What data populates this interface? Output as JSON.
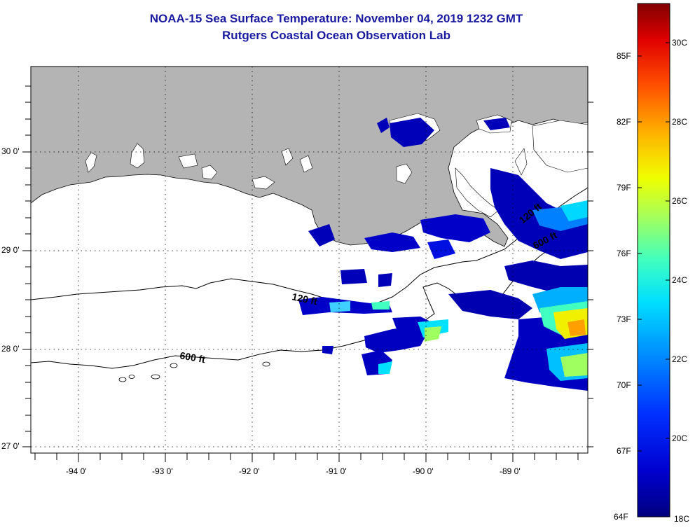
{
  "header": {
    "title": "NOAA-15 Sea Surface Temperature:  November 04, 2019 1232 GMT",
    "subtitle": "Rutgers Coastal Ocean Observation Lab"
  },
  "map": {
    "lat_ticks": [
      {
        "lat": 30,
        "label": "30 0'"
      },
      {
        "lat": 29,
        "label": "29 0'"
      },
      {
        "lat": 28,
        "label": "28 0'"
      },
      {
        "lat": 27,
        "label": "27 0'"
      }
    ],
    "lon_ticks": [
      {
        "lon": -94,
        "label": "-94 0'"
      },
      {
        "lon": -93,
        "label": "-93 0'"
      },
      {
        "lon": -92,
        "label": "-92 0'"
      },
      {
        "lon": -91,
        "label": "-91 0'"
      },
      {
        "lon": -90,
        "label": "-90 0'"
      },
      {
        "lon": -89,
        "label": "-89 0'"
      }
    ],
    "lon_range": [
      -94.54,
      -88.13
    ],
    "lat_range": [
      26.88,
      30.86
    ],
    "land_color": "#b4b4b4",
    "ocean_color": "#ffffff",
    "contour_labels": [
      "120 ft",
      "600 ft",
      "120 ft",
      "600 ft"
    ]
  },
  "colorbar": {
    "fahrenheit": [
      "85F",
      "82F",
      "79F",
      "76F",
      "73F",
      "70F",
      "67F",
      "64F"
    ],
    "celsius": [
      "30C",
      "28C",
      "26C",
      "24C",
      "22C",
      "20C",
      "18C"
    ],
    "f_range": [
      64,
      88
    ],
    "colors": [
      "#00007f",
      "#0000d0",
      "#0030ff",
      "#0090ff",
      "#00e0ff",
      "#40ffc0",
      "#a0ff60",
      "#f0ff00",
      "#ffb000",
      "#ff5000",
      "#e00000",
      "#800000"
    ]
  }
}
